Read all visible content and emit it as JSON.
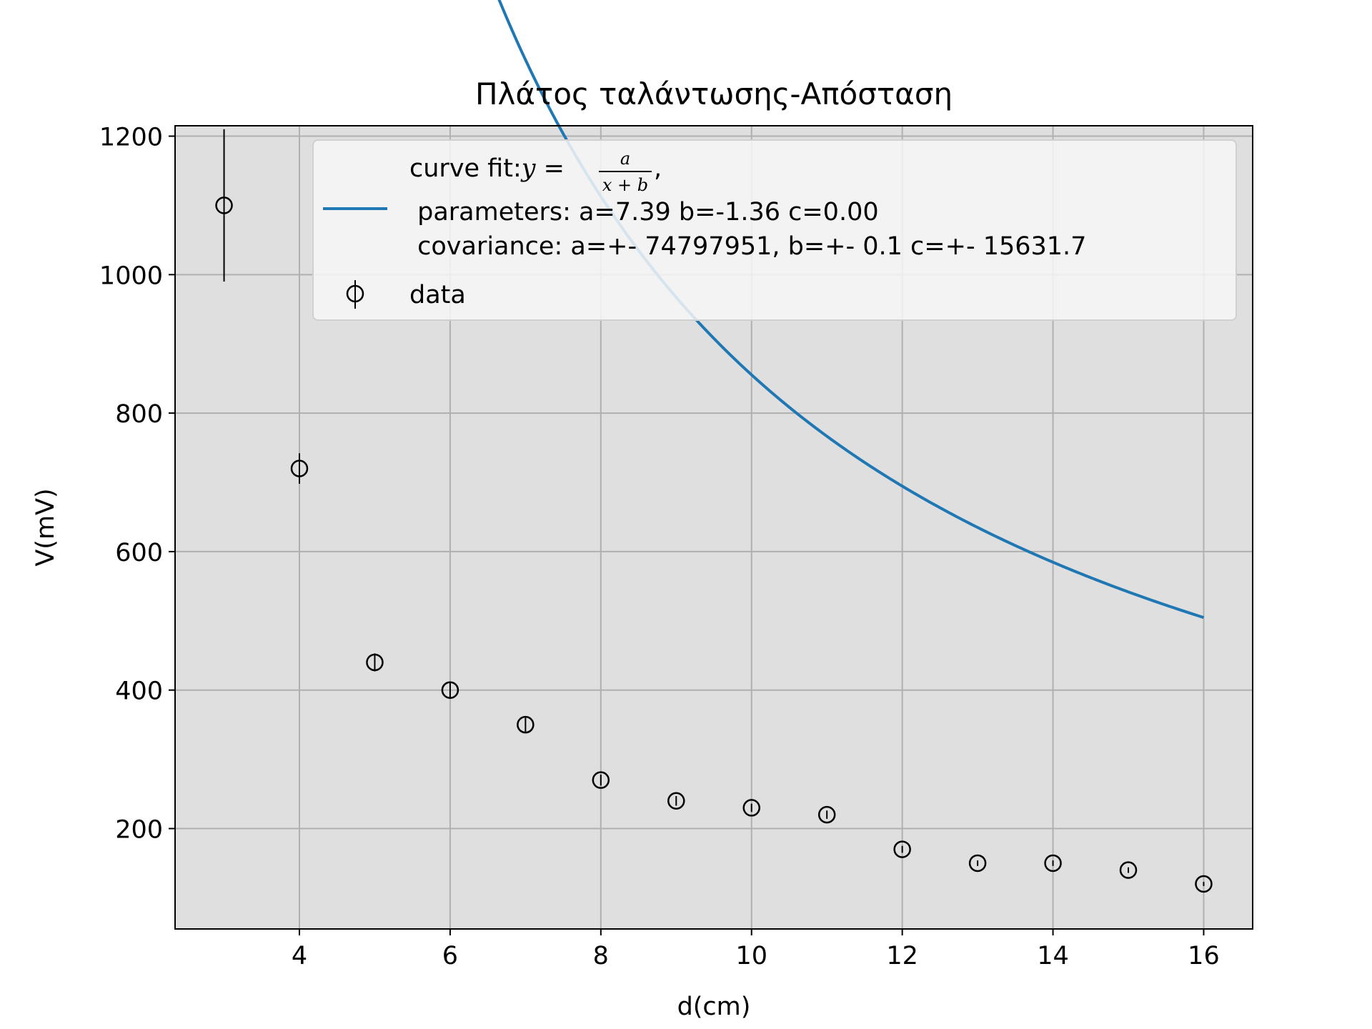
{
  "colors": {
    "plot_background": "#dfdfdf",
    "grid": "#b0b0b0",
    "fit_line": "#1f77b4",
    "markers": "#000000",
    "legend_background": "#f7f7f7"
  },
  "chart_data": {
    "type": "scatter",
    "title": "Πλάτος ταλάντωσης-Απόσταση",
    "xlabel": "d(cm)",
    "ylabel": "V(mV)",
    "xlim": [
      2.35,
      16.65
    ],
    "ylim": [
      55,
      1215
    ],
    "xticks": [
      4,
      6,
      8,
      10,
      12,
      14,
      16
    ],
    "yticks": [
      200,
      400,
      600,
      800,
      1000,
      1200
    ],
    "grid": true,
    "legend_position": "upper-right",
    "series": [
      {
        "name": "curve fit",
        "kind": "line",
        "color": "#1f77b4",
        "model": "a/(x+b) in volts, plotted in mV",
        "a": 7.39,
        "b": -1.36,
        "c": 0.0,
        "x_range": [
          3,
          16
        ]
      },
      {
        "name": "data",
        "kind": "errorbar",
        "marker": "open-circle",
        "x": [
          3,
          4,
          5,
          6,
          7,
          8,
          9,
          10,
          11,
          12,
          13,
          14,
          15,
          16
        ],
        "y": [
          1100,
          720,
          440,
          400,
          350,
          270,
          240,
          230,
          220,
          170,
          150,
          150,
          140,
          120
        ],
        "yerr": [
          110,
          22,
          13,
          12,
          10,
          8,
          7,
          6,
          6,
          5,
          4,
          4,
          4,
          3
        ]
      }
    ],
    "legend": {
      "fit_line1_prefix": "curve fit:",
      "fit_formula_y": "y",
      "fit_formula_eq": " = ",
      "fit_formula_num": "a",
      "fit_formula_den": "x + b",
      "fit_formula_suffix": ",",
      "fit_line2": " parameters: a=7.39 b=-1.36 c=0.00",
      "fit_line3": " covariance: a=+- 74797951, b=+- 0.1 c=+- 15631.7",
      "data_label": "data"
    }
  }
}
